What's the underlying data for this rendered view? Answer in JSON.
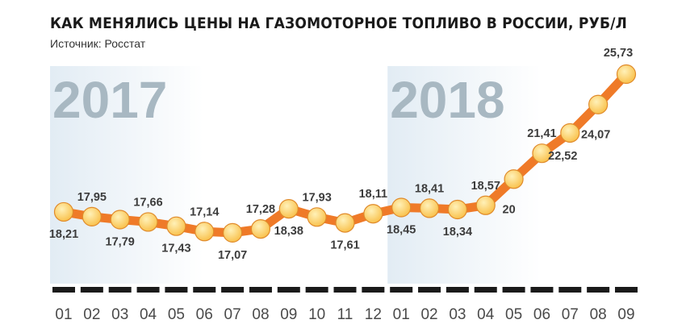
{
  "title": "КАК МЕНЯЛИСЬ ЦЕНЫ НА ГАЗОМОТОРНОЕ ТОПЛИВО В РОССИИ, РУБ/Л",
  "source": "Источник: Росстат",
  "colors": {
    "line": "#ef7a28",
    "marker": "#f9c24e",
    "marker_highlight": "#fff1b8",
    "year_band": "#e2ecf4",
    "year_text": "#a8b8c2",
    "timeline": "#1a1a1a"
  },
  "chart_data": {
    "type": "line",
    "title": "КАК МЕНЯЛИСЬ ЦЕНЫ НА ГАЗОМОТОРНОЕ ТОПЛИВО В РОССИИ, РУБ/Л",
    "unit": "РУБ/Л",
    "years": [
      {
        "label": "2017",
        "months": [
          "01",
          "02",
          "03",
          "04",
          "05",
          "06",
          "07",
          "08",
          "09",
          "10",
          "11",
          "12"
        ]
      },
      {
        "label": "2018",
        "months": [
          "01",
          "02",
          "03",
          "04",
          "05",
          "06",
          "07",
          "08",
          "09"
        ]
      }
    ],
    "x": [
      "01",
      "02",
      "03",
      "04",
      "05",
      "06",
      "07",
      "08",
      "09",
      "10",
      "11",
      "12",
      "01",
      "02",
      "03",
      "04",
      "05",
      "06",
      "07",
      "08",
      "09"
    ],
    "series": [
      {
        "values": [
          18.21,
          17.95,
          17.79,
          17.66,
          17.43,
          17.14,
          17.07,
          17.28,
          18.38,
          17.93,
          17.61,
          18.11,
          18.45,
          18.41,
          18.34,
          18.57,
          20,
          21.41,
          22.52,
          24.07,
          25.73
        ],
        "labels": [
          "18,21",
          "17,95",
          "17,79",
          "17,66",
          "17,43",
          "17,14",
          "17,07",
          "17,28",
          "18,38",
          "17,93",
          "17,61",
          "18,11",
          "18,45",
          "18,41",
          "18,34",
          "18,57",
          "20",
          "21,41",
          "22,52",
          "24,07",
          "25,73"
        ],
        "label_side": [
          "below",
          "above",
          "below",
          "above",
          "below",
          "above",
          "below",
          "above",
          "below",
          "above",
          "below",
          "above",
          "below",
          "above",
          "below",
          "above",
          "below",
          "above",
          "below",
          "below",
          "above"
        ]
      }
    ],
    "grid": false,
    "legend": "none"
  }
}
